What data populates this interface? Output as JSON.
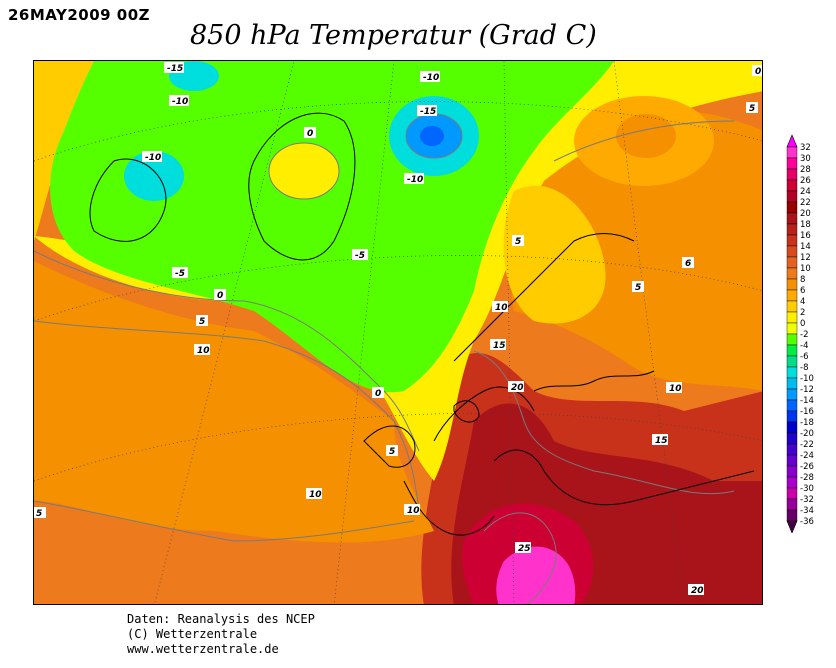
{
  "header": {
    "date": "26MAY2009 00Z",
    "title": "850 hPa Temperatur (Grad C)"
  },
  "legend": {
    "labels": [
      "32",
      "30",
      "28",
      "26",
      "24",
      "22",
      "20",
      "18",
      "16",
      "14",
      "12",
      "10",
      "8",
      "6",
      "4",
      "2",
      "0",
      "-2",
      "-4",
      "-6",
      "-8",
      "-10",
      "-12",
      "-14",
      "-16",
      "-18",
      "-20",
      "-22",
      "-24",
      "-26",
      "-28",
      "-30",
      "-32",
      "-34",
      "-36"
    ],
    "colors": [
      "#ff33cc",
      "#ff0099",
      "#e60066",
      "#cc0033",
      "#b30026",
      "#990000",
      "#a8141a",
      "#b8221a",
      "#c8321a",
      "#d84a1e",
      "#e36222",
      "#ee7a1e",
      "#f59000",
      "#ffaa00",
      "#ffcc00",
      "#ffee00",
      "#eeff00",
      "#55ff00",
      "#00ee44",
      "#00dd88",
      "#00dddd",
      "#00bbee",
      "#0099ff",
      "#0066ff",
      "#0033ee",
      "#0000cc",
      "#2200cc",
      "#4400cc",
      "#6600cc",
      "#8800cc",
      "#aa00cc",
      "#cc00aa",
      "#990099",
      "#660066"
    ]
  },
  "map": {
    "contour_labels": [
      {
        "text": "-15"
      },
      {
        "text": "-10"
      },
      {
        "text": "-10"
      },
      {
        "text": "-15"
      },
      {
        "text": "-10"
      },
      {
        "text": "-10"
      },
      {
        "text": "0"
      },
      {
        "text": "-5"
      },
      {
        "text": "-5"
      },
      {
        "text": "0"
      },
      {
        "text": "5"
      },
      {
        "text": "10"
      },
      {
        "text": "0"
      },
      {
        "text": "5"
      },
      {
        "text": "10"
      },
      {
        "text": "10"
      },
      {
        "text": "5"
      },
      {
        "text": "5"
      },
      {
        "text": "10"
      },
      {
        "text": "15"
      },
      {
        "text": "20"
      },
      {
        "text": "5"
      },
      {
        "text": "6"
      },
      {
        "text": "10"
      },
      {
        "text": "15"
      },
      {
        "text": "25"
      },
      {
        "text": "20"
      },
      {
        "text": "0"
      },
      {
        "text": "5"
      }
    ]
  },
  "footer": {
    "line1": "Daten: Reanalysis des NCEP",
    "line2": "(C) Wetterzentrale",
    "line3": "www.wetterzentrale.de"
  }
}
